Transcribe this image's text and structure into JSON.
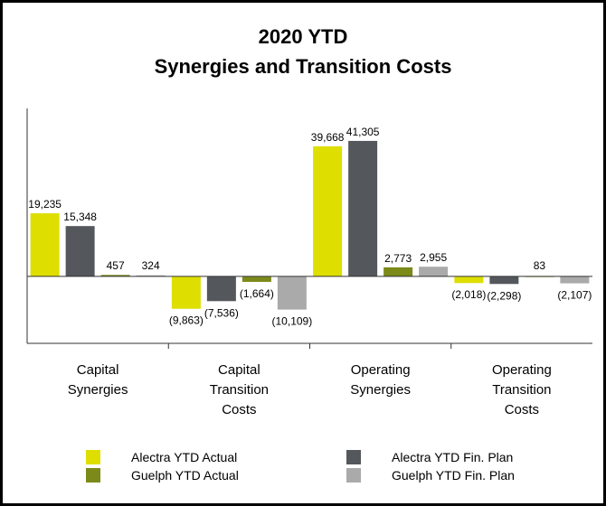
{
  "chart_data": {
    "type": "bar",
    "title": "2020 YTD",
    "subtitle": "Synergies and Transition Costs",
    "categories": [
      "Capital Synergies",
      "Capital Transition Costs",
      "Operating Synergies",
      "Operating Transition Costs"
    ],
    "series": [
      {
        "name": "Alectra YTD Actual",
        "color": "#dede00",
        "values": [
          19235,
          -9863,
          39668,
          -2018
        ],
        "value_labels": [
          "19,235",
          "(9,863)",
          "39,668",
          "(2,018)"
        ]
      },
      {
        "name": "Alectra YTD Fin. Plan",
        "color": "#54575b",
        "values": [
          15348,
          -7536,
          41305,
          -2298
        ],
        "value_labels": [
          "15,348",
          "(7,536)",
          "41,305",
          "(2,298)"
        ]
      },
      {
        "name": "Guelph YTD Actual",
        "color": "#7c8a1a",
        "values": [
          457,
          -1664,
          2773,
          83
        ],
        "value_labels": [
          "457",
          "(1,664)",
          "2,773",
          "83"
        ]
      },
      {
        "name": "Guelph YTD Fin. Plan",
        "color": "#aaaaaa",
        "values": [
          324,
          -10109,
          2955,
          -2107
        ],
        "value_labels": [
          "324",
          "(10,109)",
          "2,955",
          "(2,107)"
        ]
      }
    ],
    "ylim": [
      -20400,
      51200
    ]
  }
}
